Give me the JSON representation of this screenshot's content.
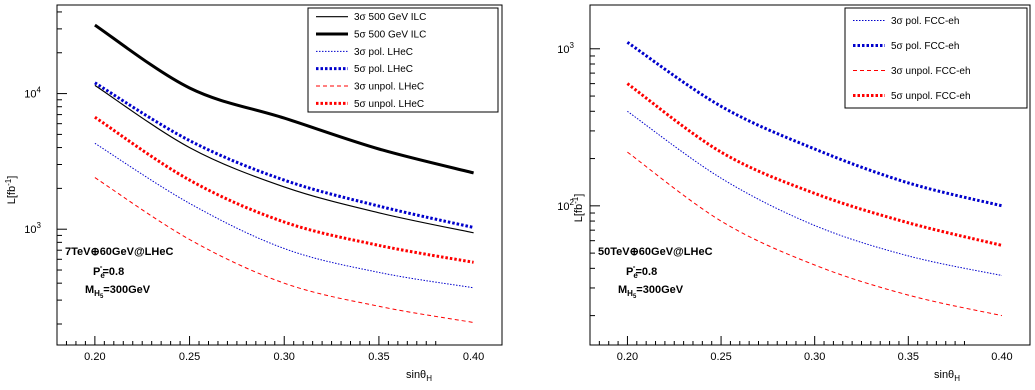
{
  "chart_data": [
    {
      "type": "line",
      "xlabel": "sinθ",
      "xlabel_sub": "H",
      "ylabel": "L[fb",
      "ylabel_sup": "-1",
      "ylabel_close": "]",
      "x_ticks": [
        "0.20",
        "0.25",
        "0.30",
        "0.35",
        "0.40"
      ],
      "y_ticks": [
        {
          "base": "10",
          "exp": "3"
        },
        {
          "base": "10",
          "exp": "4"
        }
      ],
      "xlim": [
        0.18,
        0.415
      ],
      "ylim": [
        140,
        45000
      ],
      "y_scale": "log",
      "legend_position": "top-right",
      "annotation": {
        "line1": "7TeV⊕60GeV@LHeC",
        "line2_main": "P",
        "line2_sub": "e",
        "line2_sup": "-",
        "line2_rest": "=0.8",
        "line3_main": "M",
        "line3_sub": "H",
        "line3_subsub": "5",
        "line3_rest": "=300GeV"
      },
      "x": [
        0.2,
        0.25,
        0.3,
        0.35,
        0.4
      ],
      "series": [
        {
          "name": "3σ 500 GeV ILC",
          "color": "#000000",
          "style": "solid-thin",
          "values": [
            11500,
            4000,
            2050,
            1320,
            940
          ]
        },
        {
          "name": "5σ 500 GeV ILC",
          "color": "#000000",
          "style": "solid-thick",
          "values": [
            32000,
            11000,
            6600,
            3900,
            2600
          ]
        },
        {
          "name": "3σ pol. LHeC",
          "color": "#0000cc",
          "style": "dotted-thin",
          "values": [
            4300,
            1550,
            720,
            480,
            370
          ]
        },
        {
          "name": "5σ pol. LHeC",
          "color": "#0000cc",
          "style": "dotted-thick",
          "values": [
            12000,
            4500,
            2300,
            1480,
            1030
          ]
        },
        {
          "name": "3σ unpol. LHeC",
          "color": "#ff0000",
          "style": "dashed-thin",
          "values": [
            2400,
            840,
            400,
            270,
            205
          ]
        },
        {
          "name": "5σ unpol. LHeC",
          "color": "#ff0000",
          "style": "dotted-thick",
          "values": [
            6700,
            2300,
            1130,
            760,
            570
          ]
        }
      ]
    },
    {
      "type": "line",
      "xlabel": "sinθ",
      "xlabel_sub": "H",
      "ylabel": "L[fb",
      "ylabel_sup": "-1",
      "ylabel_close": "]",
      "x_ticks": [
        "0.20",
        "0.25",
        "0.30",
        "0.35",
        "0.40"
      ],
      "y_ticks": [
        {
          "base": "10",
          "exp": "2"
        },
        {
          "base": "10",
          "exp": "3"
        }
      ],
      "xlim": [
        0.18,
        0.415
      ],
      "ylim": [
        13,
        1900
      ],
      "y_scale": "log",
      "legend_position": "top-right",
      "annotation": {
        "line1": "50TeV⊕60GeV@LHeC",
        "line2_main": "P",
        "line2_sub": "e",
        "line2_sup": "-",
        "line2_rest": "=0.8",
        "line3_main": "M",
        "line3_sub": "H",
        "line3_subsub": "5",
        "line3_rest": "=300GeV"
      },
      "x": [
        0.2,
        0.25,
        0.3,
        0.35,
        0.4
      ],
      "series": [
        {
          "name": "3σ pol. FCC-eh",
          "color": "#0000cc",
          "style": "dotted-thin",
          "values": [
            400,
            150,
            75,
            48,
            36
          ]
        },
        {
          "name": "5σ pol. FCC-eh",
          "color": "#0000cc",
          "style": "dotted-thick",
          "values": [
            1100,
            430,
            230,
            140,
            100
          ]
        },
        {
          "name": "3σ unpol. FCC-eh",
          "color": "#ff0000",
          "style": "dashed-thin",
          "values": [
            220,
            80,
            42,
            27,
            20
          ]
        },
        {
          "name": "5σ unpol. FCC-eh",
          "color": "#ff0000",
          "style": "dotted-thick",
          "values": [
            600,
            220,
            120,
            78,
            56
          ]
        }
      ]
    }
  ]
}
